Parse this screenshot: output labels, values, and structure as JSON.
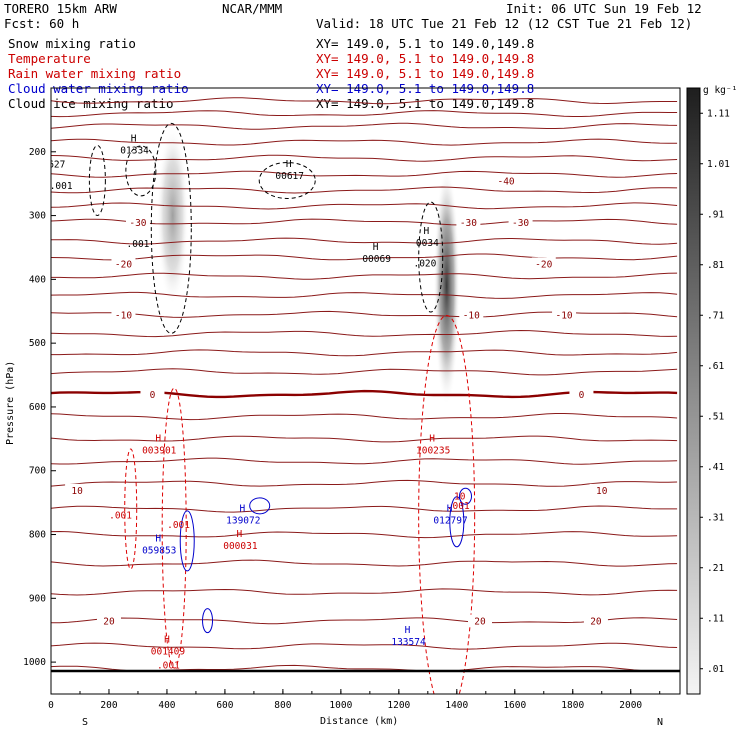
{
  "header": {
    "model": "TORERO   15km ARW",
    "center": "NCAR/MMM",
    "init": "Init: 06 UTC Sun 19 Feb 12",
    "fcst": "Fcst:   60 h",
    "valid": "Valid: 18 UTC Tue 21 Feb 12 (12 CST Tue 21 Feb 12)"
  },
  "fields": [
    {
      "name": "Snow mixing ratio",
      "xy": "XY= 149.0,  5.1 to 149.0,149.8",
      "color": "#000000"
    },
    {
      "name": "Temperature",
      "xy": "XY= 149.0,  5.1 to 149.0,149.8",
      "color": "#cc0000"
    },
    {
      "name": "Rain water mixing ratio",
      "xy": "XY= 149.0,  5.1 to 149.0,149.8",
      "color": "#cc0000"
    },
    {
      "name": "Cloud water mixing ratio",
      "xy": "XY= 149.0,  5.1 to 149.0,149.8",
      "color": "#0000cc"
    },
    {
      "name": "Cloud ice mixing ratio",
      "xy": "XY= 149.0,  5.1 to 149.0,149.8",
      "color": "#000000"
    }
  ],
  "axes": {
    "xlabel": "Distance (km)",
    "ylabel": "Pressure (hPa)",
    "left_end": "S",
    "right_end": "N",
    "colorbar_unit": "g kg⁻¹"
  },
  "chart_data": {
    "type": "cross-section contour",
    "xlim": [
      0,
      2170
    ],
    "ylim": [
      1050,
      100
    ],
    "x_ticks": [
      "0",
      "200",
      "400",
      "600",
      "800",
      "1000",
      "1200",
      "1400",
      "1600",
      "1800",
      "2000"
    ],
    "y_ticks": [
      "200",
      "300",
      "400",
      "500",
      "600",
      "700",
      "800",
      "900",
      "1000"
    ],
    "colorbar": {
      "labels": [
        ".01",
        ".11",
        ".21",
        ".31",
        ".41",
        ".51",
        ".61",
        ".71",
        ".81",
        ".91",
        "1.01",
        "1.11"
      ],
      "levels": [
        0.01,
        0.11,
        0.21,
        0.31,
        0.41,
        0.51,
        0.61,
        0.71,
        0.81,
        0.91,
        1.01,
        1.11
      ]
    },
    "temperature_isotherms_c": [
      {
        "value": -40,
        "p": 245,
        "label": "-40",
        "label_x": 1570
      },
      {
        "value": -30,
        "p": 310,
        "label": "-30",
        "label_x": 300
      },
      {
        "value": -30,
        "p": 310,
        "label": "-30",
        "label_x": 1440
      },
      {
        "value": -30,
        "p": 310,
        "label": "-30",
        "label_x": 1620
      },
      {
        "value": -20,
        "p": 375,
        "label": "-20",
        "label_x": 250
      },
      {
        "value": -20,
        "p": 375,
        "label": "-20",
        "label_x": 1700
      },
      {
        "value": -10,
        "p": 455,
        "label": "-10",
        "label_x": 250
      },
      {
        "value": -10,
        "p": 455,
        "label": "-10",
        "label_x": 1450
      },
      {
        "value": -10,
        "p": 455,
        "label": "-10",
        "label_x": 1770
      },
      {
        "value": 0,
        "p": 580,
        "label": "0",
        "label_x": 350
      },
      {
        "value": 0,
        "p": 580,
        "label": "0",
        "label_x": 1830
      },
      {
        "value": 10,
        "p": 730,
        "label": "10",
        "label_x": 90
      },
      {
        "value": 10,
        "p": 730,
        "label": "10",
        "label_x": 1900
      },
      {
        "value": 20,
        "p": 935,
        "label": "20",
        "label_x": 200
      },
      {
        "value": 20,
        "p": 935,
        "label": "20",
        "label_x": 1480
      },
      {
        "value": 20,
        "p": 935,
        "label": "20",
        "label_x": 1880
      }
    ],
    "isotherm_pressures": [
      120,
      140,
      160,
      185,
      210,
      235,
      260,
      285,
      310,
      340,
      365,
      395,
      425,
      455,
      485,
      515,
      545,
      580,
      615,
      650,
      685,
      720,
      760,
      800,
      845,
      890,
      935,
      975,
      1010
    ],
    "maxima": [
      {
        "field": "cloud ice",
        "x": 285,
        "p": 195,
        "value": "01334"
      },
      {
        "field": "cloud ice",
        "x": 820,
        "p": 235,
        "value": "00617"
      },
      {
        "field": "cloud ice",
        "x": 1120,
        "p": 365,
        "value": "00069"
      },
      {
        "field": "cloud ice",
        "x": 1295,
        "p": 340,
        "value": "0034"
      },
      {
        "field": "rain water",
        "x": 370,
        "p": 665,
        "value": "003901"
      },
      {
        "field": "rain water",
        "x": 1315,
        "p": 665,
        "value": "100235"
      },
      {
        "field": "rain water",
        "x": 650,
        "p": 815,
        "value": "000031"
      },
      {
        "field": "rain water",
        "x": 400,
        "p": 980,
        "value": "001409"
      },
      {
        "field": "cloud water",
        "x": 660,
        "p": 775,
        "value": "139072"
      },
      {
        "field": "cloud water",
        "x": 1375,
        "p": 775,
        "value": "012797"
      },
      {
        "field": "cloud water",
        "x": 370,
        "p": 822,
        "value": "059853"
      },
      {
        "field": "cloud water",
        "x": 1230,
        "p": 965,
        "value": "133574"
      }
    ],
    "contour_labels": [
      {
        "text": ".001",
        "x": 35,
        "p": 258,
        "color": "#000000"
      },
      {
        "text": ".001",
        "x": 300,
        "p": 349,
        "color": "#000000"
      },
      {
        "text": ".020",
        "x": 1290,
        "p": 380,
        "color": "#000000"
      },
      {
        "text": "627",
        "x": 20,
        "p": 225,
        "color": "#000000"
      },
      {
        "text": ".001",
        "x": 440,
        "p": 790,
        "color": "#cc0000"
      },
      {
        "text": ".001",
        "x": 240,
        "p": 775,
        "color": "#cc0000"
      },
      {
        "text": ".001",
        "x": 405,
        "p": 1010,
        "color": "#cc0000"
      },
      {
        "text": "10",
        "x": 1410,
        "p": 745,
        "color": "#cc0000"
      },
      {
        "text": ".001",
        "x": 1405,
        "p": 760,
        "color": "#cc0000"
      }
    ],
    "snow_max": [
      {
        "x": 420,
        "p": 300,
        "value": 0.6
      },
      {
        "x": 1365,
        "p": 410,
        "value": 1.1
      }
    ]
  }
}
